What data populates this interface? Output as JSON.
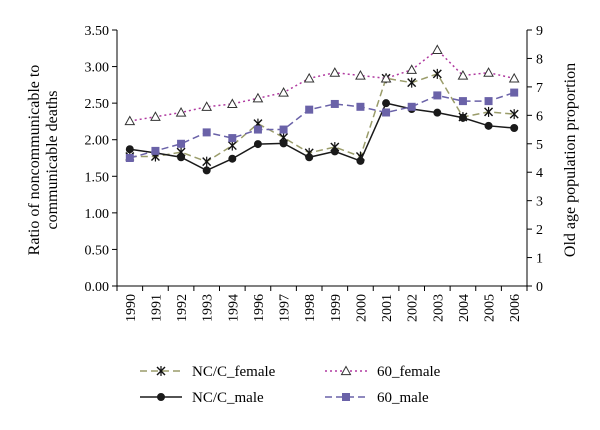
{
  "chart_data": {
    "type": "line",
    "x": [
      "1990",
      "1991",
      "1992",
      "1993",
      "1994",
      "1996",
      "1997",
      "1998",
      "1999",
      "2000",
      "2001",
      "2002",
      "2003",
      "2004",
      "2005",
      "2006"
    ],
    "ylabel_left": "Ratio of noncommunicable to communicable deaths",
    "ylabel_left_lines": [
      "Ratio of noncommunicable to",
      "communicable deaths"
    ],
    "ylabel_right": "Old age population proportion",
    "ylim_left": [
      0,
      3.5
    ],
    "ylim_right": [
      0,
      9
    ],
    "yticks_left": [
      "0.00",
      "0.50",
      "1.00",
      "1.50",
      "2.00",
      "2.50",
      "3.00",
      "3.50"
    ],
    "yticks_right": [
      "0",
      "1",
      "2",
      "3",
      "4",
      "5",
      "6",
      "7",
      "8",
      "9"
    ],
    "grid": false,
    "legend_position": "bottom",
    "series": [
      {
        "name": "NC/C_female",
        "axis": "left",
        "color": "#9a9c6a",
        "style": "dashed",
        "marker": "star",
        "values": [
          1.77,
          1.77,
          1.83,
          1.7,
          1.92,
          2.22,
          2.03,
          1.82,
          1.9,
          1.77,
          2.84,
          2.78,
          2.9,
          2.31,
          2.38,
          2.35
        ]
      },
      {
        "name": "60_female",
        "axis": "right",
        "color": "#b03aa0",
        "style": "dotted",
        "marker": "triangle",
        "values": [
          5.8,
          5.95,
          6.1,
          6.3,
          6.4,
          6.6,
          6.8,
          7.3,
          7.5,
          7.4,
          7.3,
          7.6,
          8.3,
          7.4,
          7.5,
          7.3
        ]
      },
      {
        "name": "NC/C_male",
        "axis": "left",
        "color": "#1a1a1a",
        "style": "solid",
        "marker": "circle",
        "values": [
          1.87,
          1.82,
          1.76,
          1.58,
          1.74,
          1.94,
          1.95,
          1.76,
          1.84,
          1.71,
          2.5,
          2.42,
          2.37,
          2.3,
          2.19,
          2.16
        ]
      },
      {
        "name": "60_male",
        "axis": "right",
        "color": "#6a62a8",
        "style": "dashed",
        "marker": "square",
        "values": [
          4.5,
          4.75,
          5.0,
          5.4,
          5.2,
          5.5,
          5.5,
          6.2,
          6.4,
          6.3,
          6.1,
          6.3,
          6.7,
          6.5,
          6.5,
          6.8
        ]
      }
    ],
    "legend": [
      {
        "series": "NC/C_female",
        "label": "NC/C_female"
      },
      {
        "series": "60_female",
        "label": "60_female"
      },
      {
        "series": "NC/C_male",
        "label": "NC/C_male"
      },
      {
        "series": "60_male",
        "label": "60_male"
      }
    ]
  }
}
